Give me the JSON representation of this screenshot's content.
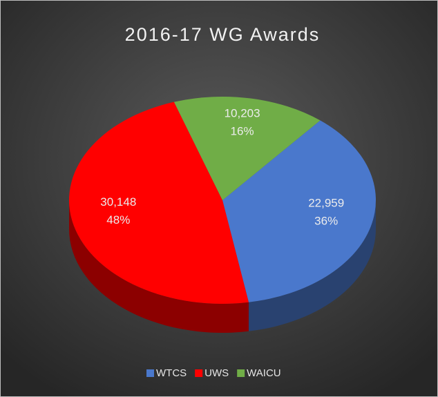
{
  "chart_data": {
    "type": "pie3d",
    "title": "2016-17 WG Awards",
    "categories": [
      "WTCS",
      "UWS",
      "WAICU"
    ],
    "values": [
      22959,
      30148,
      10203
    ],
    "value_labels": [
      "22,959",
      "30,148",
      "10,203"
    ],
    "percent_labels": [
      "36%",
      "48%",
      "16%"
    ],
    "colors": [
      "#4a78cc",
      "#ff0000",
      "#70ad47"
    ],
    "legend": "bottom"
  }
}
